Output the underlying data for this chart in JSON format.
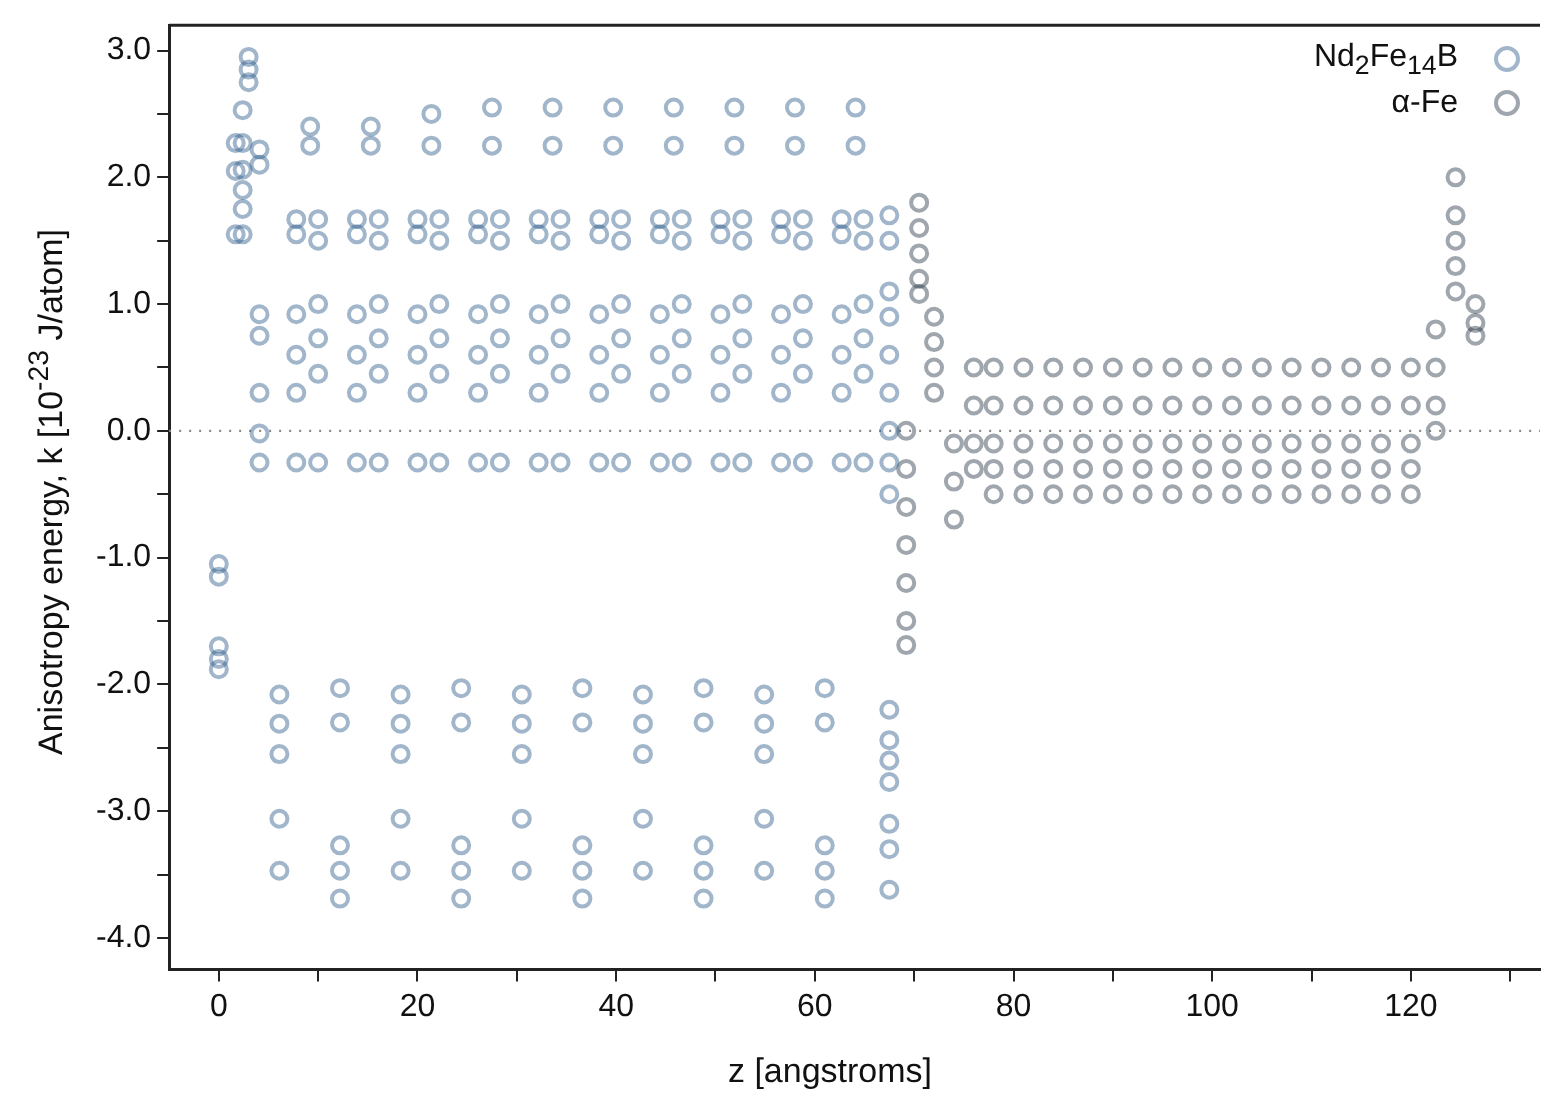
{
  "chart_data": {
    "type": "scatter",
    "xlabel": "z [angstroms]",
    "ylabel": "Anisotropy energy, k [10$^{-23}$ J/atom]",
    "xlim": [
      -5,
      133
    ],
    "ylim": [
      -4.25,
      3.2
    ],
    "xticks": [
      0,
      {
        "value": 10,
        "label": null
      },
      20,
      {
        "value": 30,
        "label": null
      },
      40,
      {
        "value": 50,
        "label": null
      },
      60,
      {
        "value": 70,
        "label": null
      },
      80,
      {
        "value": 90,
        "label": null
      },
      100,
      {
        "value": 110,
        "label": null
      },
      120,
      {
        "value": 130,
        "label": null
      }
    ],
    "yticks": [
      {
        "value": -4,
        "label": "-4.0"
      },
      {
        "value": -3.5,
        "label": null
      },
      {
        "value": -3,
        "label": "-3.0"
      },
      {
        "value": -2.5,
        "label": null
      },
      {
        "value": -2,
        "label": "-2.0"
      },
      {
        "value": -1.5,
        "label": null
      },
      {
        "value": -1,
        "label": "-1.0"
      },
      {
        "value": -0.5,
        "label": null
      },
      {
        "value": 0,
        "label": "0.0"
      },
      {
        "value": 0.5,
        "label": null
      },
      {
        "value": 1,
        "label": "1.0"
      },
      {
        "value": 1.5,
        "label": null
      },
      {
        "value": 2,
        "label": "2.0"
      },
      {
        "value": 2.5,
        "label": null
      },
      {
        "value": 3,
        "label": "3.0"
      }
    ],
    "grid": false,
    "legend": "top right",
    "marker": "circle",
    "ref_lines": [
      {
        "axis": "y",
        "value": 0,
        "color": "#888888",
        "line_style": "dotted"
      }
    ],
    "series": [
      {
        "name": "Nd$_{2}$Fe$_{14}$B",
        "color": "#2f5d8c",
        "x": [
          0,
          0,
          0,
          0,
          0,
          1.7,
          1.7,
          1.7,
          2.4,
          2.4,
          2.4,
          2.4,
          2.4,
          2.4,
          3,
          3,
          3,
          4.1,
          4.1,
          4.1,
          4.1,
          4.1,
          4.1,
          4.1,
          7.8,
          7.8,
          7.8,
          7.8,
          7.8,
          7.8,
          10,
          10,
          10,
          10,
          10,
          10,
          9.2,
          9.2,
          6.1,
          6.1,
          6.1,
          6.1,
          6.1,
          13.9,
          13.9,
          13.9,
          13.9,
          13.9,
          13.9,
          16.1,
          16.1,
          16.1,
          16.1,
          16.1,
          16.1,
          15.3,
          15.3,
          12.2,
          12.2,
          12.2,
          12.2,
          12.2,
          20,
          20,
          20,
          20,
          20,
          20,
          22.2,
          22.2,
          22.2,
          22.2,
          22.2,
          22.2,
          21.4,
          21.4,
          18.3,
          18.3,
          18.3,
          18.3,
          18.3,
          26.1,
          26.1,
          26.1,
          26.1,
          26.1,
          26.1,
          28.3,
          28.3,
          28.3,
          28.3,
          28.3,
          28.3,
          27.5,
          27.5,
          24.4,
          24.4,
          24.4,
          24.4,
          24.4,
          32.2,
          32.2,
          32.2,
          32.2,
          32.2,
          32.2,
          34.4,
          34.4,
          34.4,
          34.4,
          34.4,
          34.4,
          33.6,
          33.6,
          30.5,
          30.5,
          30.5,
          30.5,
          30.5,
          38.3,
          38.3,
          38.3,
          38.3,
          38.3,
          38.3,
          40.5,
          40.5,
          40.5,
          40.5,
          40.5,
          40.5,
          39.7,
          39.7,
          36.6,
          36.6,
          36.6,
          36.6,
          36.6,
          44.4,
          44.4,
          44.4,
          44.4,
          44.4,
          44.4,
          46.6,
          46.6,
          46.6,
          46.6,
          46.6,
          46.6,
          45.8,
          45.8,
          42.7,
          42.7,
          42.7,
          42.7,
          42.7,
          50.5,
          50.5,
          50.5,
          50.5,
          50.5,
          50.5,
          52.7,
          52.7,
          52.7,
          52.7,
          52.7,
          52.7,
          51.9,
          51.9,
          48.8,
          48.8,
          48.8,
          48.8,
          48.8,
          56.6,
          56.6,
          56.6,
          56.6,
          56.6,
          56.6,
          58.8,
          58.8,
          58.8,
          58.8,
          58.8,
          58.8,
          58,
          58,
          54.9,
          54.9,
          54.9,
          54.9,
          54.9,
          62.7,
          62.7,
          62.7,
          62.7,
          62.7,
          62.7,
          64.9,
          64.9,
          64.9,
          64.9,
          64.9,
          64.9,
          64.1,
          64.1,
          61,
          61,
          61,
          61,
          61,
          67.5,
          67.5,
          67.5,
          67.5,
          67.5,
          67.5,
          67.5,
          67.5,
          67.5,
          67.5,
          67.5,
          67.5,
          67.5,
          67.5,
          67.5,
          67.5
        ],
        "values": [
          -1.05,
          -1.15,
          -1.7,
          -1.8,
          -1.88,
          2.27,
          2.05,
          1.55,
          2.53,
          2.27,
          2.06,
          1.9,
          1.75,
          1.55,
          2.95,
          2.85,
          2.75,
          2.22,
          2.1,
          0.92,
          0.75,
          0.3,
          -0.02,
          -0.25,
          1.67,
          1.55,
          0.92,
          0.6,
          0.3,
          -0.25,
          1.67,
          1.5,
          1,
          0.73,
          0.45,
          -0.25,
          2.25,
          2.4,
          -2.08,
          -2.31,
          -2.55,
          -3.06,
          -3.47,
          1.67,
          1.55,
          0.92,
          0.6,
          0.3,
          -0.25,
          1.67,
          1.5,
          1,
          0.73,
          0.45,
          -0.25,
          2.25,
          2.4,
          -2.03,
          -2.3,
          -3.27,
          -3.47,
          -3.69,
          1.67,
          1.55,
          0.92,
          0.6,
          0.3,
          -0.25,
          1.67,
          1.5,
          1,
          0.73,
          0.45,
          -0.25,
          2.25,
          2.5,
          -2.08,
          -2.31,
          -2.55,
          -3.06,
          -3.47,
          1.67,
          1.55,
          0.92,
          0.6,
          0.3,
          -0.25,
          1.67,
          1.5,
          1,
          0.73,
          0.45,
          -0.25,
          2.25,
          2.55,
          -2.03,
          -2.3,
          -3.27,
          -3.47,
          -3.69,
          1.67,
          1.55,
          0.92,
          0.6,
          0.3,
          -0.25,
          1.67,
          1.5,
          1,
          0.73,
          0.45,
          -0.25,
          2.25,
          2.55,
          -2.08,
          -2.31,
          -2.55,
          -3.06,
          -3.47,
          1.67,
          1.55,
          0.92,
          0.6,
          0.3,
          -0.25,
          1.67,
          1.5,
          1,
          0.73,
          0.45,
          -0.25,
          2.25,
          2.55,
          -2.03,
          -2.3,
          -3.27,
          -3.47,
          -3.69,
          1.67,
          1.55,
          0.92,
          0.6,
          0.3,
          -0.25,
          1.67,
          1.5,
          1,
          0.73,
          0.45,
          -0.25,
          2.25,
          2.55,
          -2.08,
          -2.31,
          -2.55,
          -3.06,
          -3.47,
          1.67,
          1.55,
          0.92,
          0.6,
          0.3,
          -0.25,
          1.67,
          1.5,
          1,
          0.73,
          0.45,
          -0.25,
          2.25,
          2.55,
          -2.03,
          -2.3,
          -3.27,
          -3.47,
          -3.69,
          1.67,
          1.55,
          0.92,
          0.6,
          0.3,
          -0.25,
          1.67,
          1.5,
          1,
          0.73,
          0.45,
          -0.25,
          2.25,
          2.55,
          -2.08,
          -2.31,
          -2.55,
          -3.06,
          -3.47,
          1.67,
          1.55,
          0.92,
          0.6,
          0.3,
          -0.25,
          1.67,
          1.5,
          1,
          0.73,
          0.45,
          -0.25,
          2.25,
          2.55,
          -2.03,
          -2.3,
          -3.27,
          -3.47,
          -3.69,
          1.7,
          1.5,
          1.1,
          0.9,
          0.6,
          0.3,
          0,
          -0.25,
          -0.5,
          -2.2,
          -2.44,
          -2.6,
          -2.77,
          -3.1,
          -3.3,
          -3.62
        ]
      },
      {
        "name": "α-Fe",
        "color": "#2b3a4a",
        "x": [
          69.2,
          69.2,
          69.2,
          69.2,
          69.2,
          69.2,
          69.2,
          70.5,
          70.5,
          70.5,
          70.5,
          70.5,
          72,
          72,
          72,
          72,
          74,
          74,
          74,
          76,
          76,
          76,
          76,
          78,
          78,
          78,
          78,
          78,
          81,
          81,
          81,
          81,
          81,
          84,
          84,
          84,
          84,
          84,
          87,
          87,
          87,
          87,
          87,
          90,
          90,
          90,
          90,
          90,
          93,
          93,
          93,
          93,
          93,
          96,
          96,
          96,
          96,
          96,
          99,
          99,
          99,
          99,
          99,
          102,
          102,
          102,
          102,
          102,
          105,
          105,
          105,
          105,
          105,
          108,
          108,
          108,
          108,
          108,
          111,
          111,
          111,
          111,
          111,
          114,
          114,
          114,
          114,
          114,
          117,
          117,
          117,
          117,
          117,
          120,
          120,
          120,
          120,
          120,
          122.5,
          122.5,
          122.5,
          122.5,
          124.5,
          124.5,
          124.5,
          124.5,
          124.5,
          126.5,
          126.5,
          126.5
        ],
        "values": [
          0,
          -0.3,
          -0.6,
          -0.9,
          -1.2,
          -1.5,
          -1.69,
          1.8,
          1.6,
          1.4,
          1.2,
          1.08,
          0.9,
          0.7,
          0.5,
          0.3,
          -0.1,
          -0.4,
          -0.7,
          0.5,
          0.2,
          -0.1,
          -0.3,
          0.5,
          0.2,
          -0.1,
          -0.3,
          -0.5,
          0.5,
          0.2,
          -0.1,
          -0.3,
          -0.5,
          0.5,
          0.2,
          -0.1,
          -0.3,
          -0.5,
          0.5,
          0.2,
          -0.1,
          -0.3,
          -0.5,
          0.5,
          0.2,
          -0.1,
          -0.3,
          -0.5,
          0.5,
          0.2,
          -0.1,
          -0.3,
          -0.5,
          0.5,
          0.2,
          -0.1,
          -0.3,
          -0.5,
          0.5,
          0.2,
          -0.1,
          -0.3,
          -0.5,
          0.5,
          0.2,
          -0.1,
          -0.3,
          -0.5,
          0.5,
          0.2,
          -0.1,
          -0.3,
          -0.5,
          0.5,
          0.2,
          -0.1,
          -0.3,
          -0.5,
          0.5,
          0.2,
          -0.1,
          -0.3,
          -0.5,
          0.5,
          0.2,
          -0.1,
          -0.3,
          -0.5,
          0.5,
          0.2,
          -0.1,
          -0.3,
          -0.5,
          0.5,
          0.2,
          -0.1,
          -0.3,
          -0.5,
          0.8,
          0.5,
          0.2,
          0,
          2,
          1.7,
          1.5,
          1.3,
          1.1,
          1,
          0.85,
          0.75
        ]
      }
    ]
  }
}
